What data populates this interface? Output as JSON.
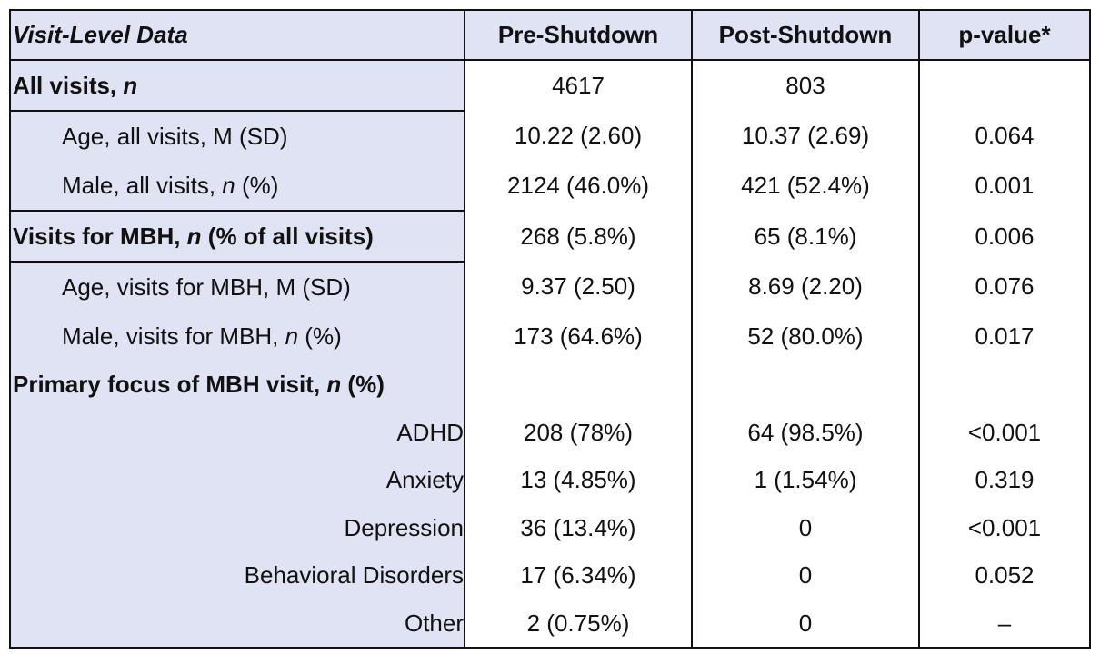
{
  "headers": {
    "col0": "Visit-Level Data",
    "col1": "Pre-Shutdown",
    "col2": "Post-Shutdown",
    "col3": "p-value*"
  },
  "rows": [
    {
      "label_main": "All visits, ",
      "label_ital": "n",
      "label_tail": "",
      "pre": "4617",
      "post": "803",
      "p": ""
    },
    {
      "label_main": "Age, all visits, M (SD)",
      "label_ital": "",
      "label_tail": "",
      "pre": "10.22 (2.60)",
      "post": "10.37 (2.69)",
      "p": "0.064"
    },
    {
      "label_main": "Male, all visits, ",
      "label_ital": "n",
      "label_tail": " (%)",
      "pre": "2124 (46.0%)",
      "post": "421 (52.4%)",
      "p": "0.001"
    },
    {
      "label_main": "Visits for MBH, ",
      "label_ital": "n",
      "label_tail": " (% of all visits)",
      "pre": "268 (5.8%)",
      "post": "65 (8.1%)",
      "p": "0.006"
    },
    {
      "label_main": "Age, visits for MBH, M (SD)",
      "label_ital": "",
      "label_tail": "",
      "pre": "9.37 (2.50)",
      "post": "8.69 (2.20)",
      "p": "0.076"
    },
    {
      "label_main": "Male, visits for MBH, ",
      "label_ital": "n",
      "label_tail": " (%)",
      "pre": "173 (64.6%)",
      "post": "52 (80.0%)",
      "p": "0.017"
    },
    {
      "label_main": "Primary focus of MBH visit, ",
      "label_ital": "n",
      "label_tail": " (%)",
      "pre": "",
      "post": "",
      "p": ""
    },
    {
      "label_main": "ADHD",
      "pre": "208 (78%)",
      "post": "64 (98.5%)",
      "p": "<0.001"
    },
    {
      "label_main": "Anxiety",
      "pre": "13 (4.85%)",
      "post": "1 (1.54%)",
      "p": "0.319"
    },
    {
      "label_main": "Depression",
      "pre": "36 (13.4%)",
      "post": "0",
      "p": "<0.001"
    },
    {
      "label_main": "Behavioral Disorders",
      "pre": "17 (6.34%)",
      "post": "0",
      "p": "0.052"
    },
    {
      "label_main": "Other",
      "pre": "2 (0.75%)",
      "post": "0",
      "p": "–"
    }
  ],
  "colors": {
    "label_background": "#dfe3f4",
    "border": "#111111"
  }
}
